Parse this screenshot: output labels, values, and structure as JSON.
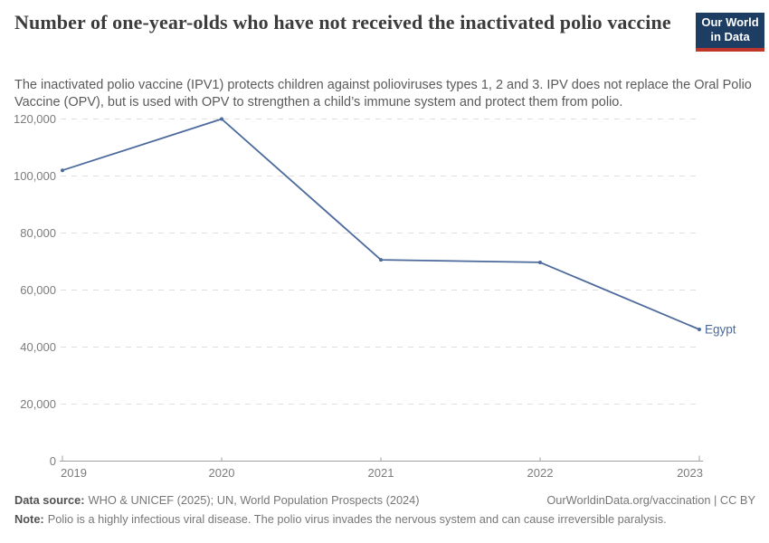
{
  "header": {
    "title": "Number of one-year-olds who have not received the inactivated polio vaccine",
    "subtitle": "The inactivated polio vaccine (IPV1) protects children against polioviruses types 1, 2 and 3. IPV does not replace the Oral Polio Vaccine (OPV), but is used with OPV to strengthen a child’s immune system and protect them from polio."
  },
  "logo": {
    "line1": "Our World",
    "line2": "in Data",
    "bg_color": "#1d3d63",
    "accent_color": "#c0362c"
  },
  "chart_data": {
    "type": "line",
    "title": "Number of one-year-olds who have not received the inactivated polio vaccine",
    "x": [
      "2019",
      "2020",
      "2021",
      "2022",
      "2023"
    ],
    "series": [
      {
        "name": "Egypt",
        "color": "#4c6a9c",
        "values": [
          102000,
          120000,
          70600,
          69700,
          46200
        ]
      }
    ],
    "xlabel": "",
    "ylabel": "",
    "ylim": [
      0,
      120000
    ],
    "yticks": [
      0,
      20000,
      40000,
      60000,
      80000,
      100000,
      120000
    ],
    "grid": "horizontal-dashed",
    "legend": "line-end-label",
    "colors": {
      "grid": "#dedede",
      "axis": "#a0a0a0",
      "tick_label": "#7c7c7c"
    }
  },
  "footer": {
    "source_label": "Data source:",
    "source_text": "WHO & UNICEF (2025); UN, World Population Prospects (2024)",
    "link_text": "OurWorldinData.org/vaccination | CC BY",
    "note_label": "Note:",
    "note_text": "Polio is a highly infectious viral disease. The polio virus invades the nervous system and can cause irreversible paralysis."
  }
}
